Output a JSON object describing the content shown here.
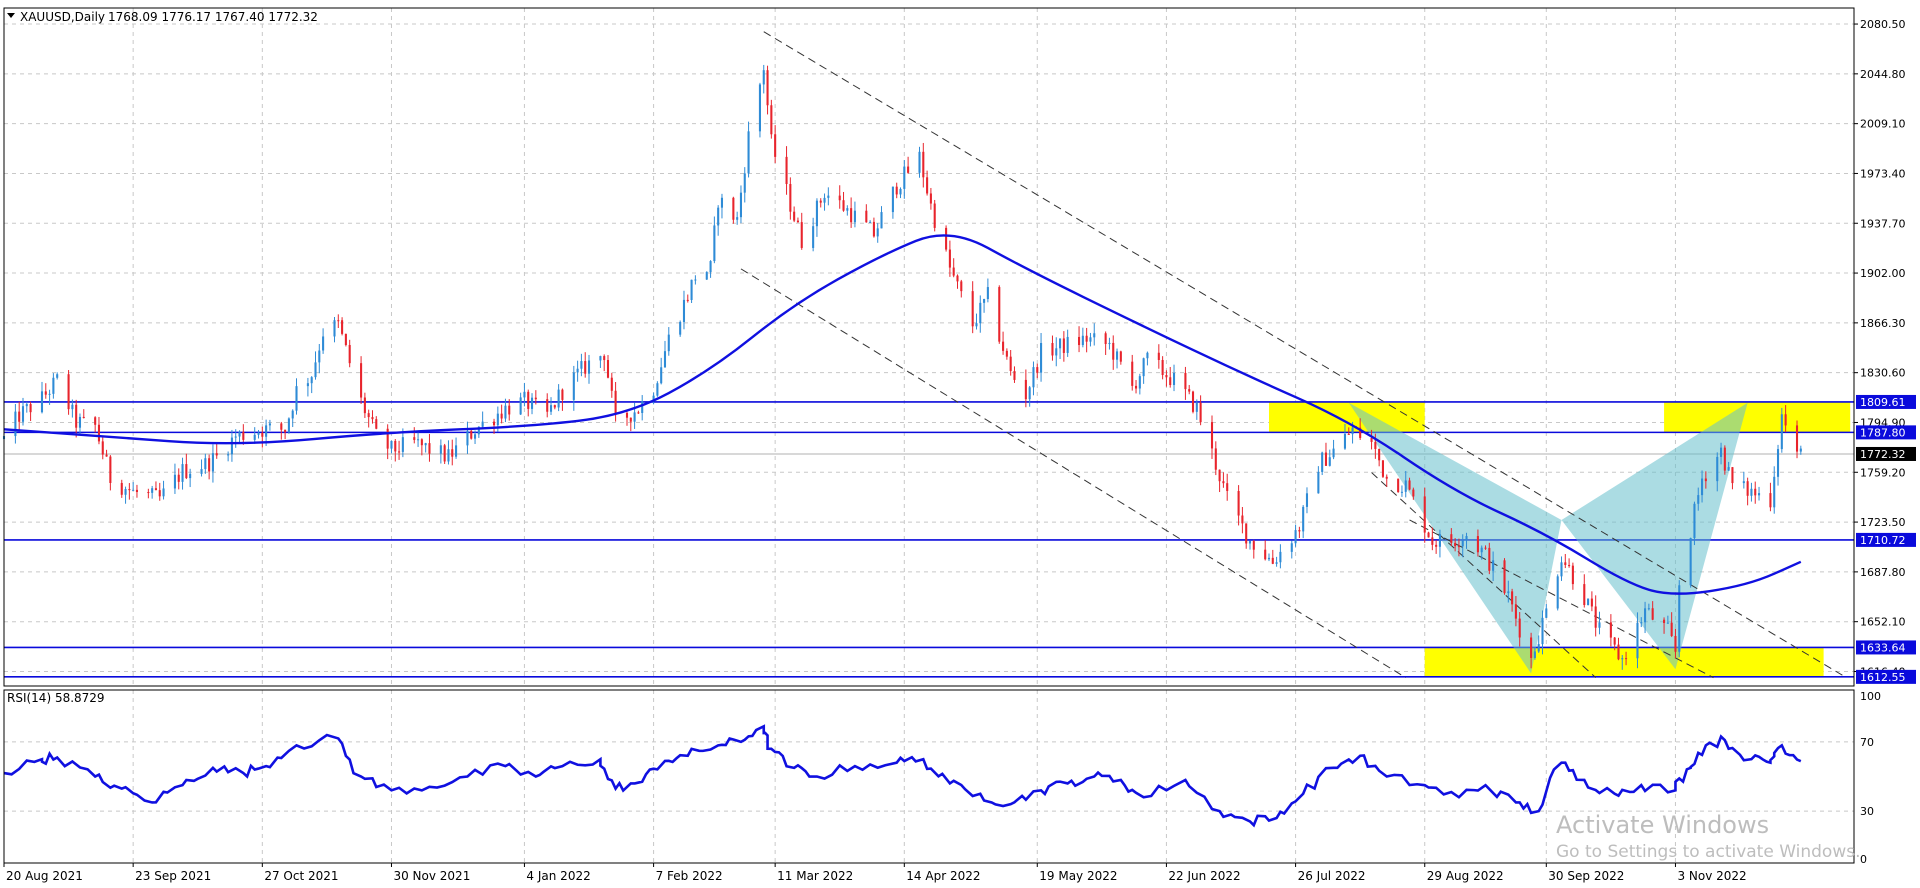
{
  "header": {
    "symbol_timeframe": "XAUUSD,Daily",
    "ohlc": "1768.09 1776.17 1767.40 1772.32"
  },
  "rsi_header": "RSI(14) 58.8729",
  "watermark": {
    "title": "Activate Windows",
    "subtitle": "Go to Settings to activate Windows."
  },
  "colors": {
    "bull": "#2E8BD6",
    "bear": "#E8242C",
    "ma_line": "#1010E0",
    "level_line": "#0A0ADC",
    "zone_yellow": "#FFFF00",
    "pattern_fill": "#66C0CC",
    "grid": "#C8C8C8"
  },
  "chart_data": [
    {
      "type": "candlestick",
      "symbol": "XAUUSD",
      "timeframe": "Daily",
      "title": "XAUUSD,Daily",
      "ohlc_last": {
        "open": 1768.09,
        "high": 1776.17,
        "low": 1767.4,
        "close": 1772.32
      },
      "last_price": 1772.32,
      "ylim": [
        1606,
        2092
      ],
      "y_ticks": [
        2080.5,
        2044.8,
        2009.1,
        1973.4,
        1937.7,
        1902.0,
        1866.3,
        1830.6,
        1794.9,
        1759.2,
        1723.5,
        1687.8,
        1652.1,
        1616.4
      ],
      "y_tick_labels": [
        "2080.50",
        "2044.80",
        "2009.10",
        "1973.40",
        "1937.70",
        "1902.00",
        "1866.30",
        "1830.60",
        "1794.90",
        "1759.20",
        "1723.50",
        "1687.80",
        "1652.10",
        "1616.40"
      ],
      "x_labels": [
        "20 Aug 2021",
        "23 Sep 2021",
        "27 Oct 2021",
        "30 Nov 2021",
        "4 Jan 2022",
        "7 Feb 2022",
        "11 Mar 2022",
        "14 Apr 2022",
        "19 May 2022",
        "22 Jun 2022",
        "26 Jul 2022",
        "29 Aug 2022",
        "30 Sep 2022",
        "3 Nov 2022"
      ],
      "grid": true,
      "close_anchors": [
        [
          "2021-08-20",
          1783
        ],
        [
          "2021-08-24",
          1800
        ],
        [
          "2021-08-30",
          1812
        ],
        [
          "2021-09-03",
          1825
        ],
        [
          "2021-09-08",
          1795
        ],
        [
          "2021-09-13",
          1792
        ],
        [
          "2021-09-17",
          1755
        ],
        [
          "2021-09-23",
          1745
        ],
        [
          "2021-09-30",
          1740
        ],
        [
          "2021-10-06",
          1760
        ],
        [
          "2021-10-12",
          1765
        ],
        [
          "2021-10-15",
          1770
        ],
        [
          "2021-10-20",
          1785
        ],
        [
          "2021-10-27",
          1790
        ],
        [
          "2021-11-02",
          1790
        ],
        [
          "2021-11-05",
          1818
        ],
        [
          "2021-11-09",
          1830
        ],
        [
          "2021-11-12",
          1860
        ],
        [
          "2021-11-16",
          1865
        ],
        [
          "2021-11-22",
          1810
        ],
        [
          "2021-11-26",
          1785
        ],
        [
          "2021-11-30",
          1775
        ],
        [
          "2021-12-06",
          1780
        ],
        [
          "2021-12-15",
          1770
        ],
        [
          "2021-12-22",
          1790
        ],
        [
          "2021-12-30",
          1805
        ],
        [
          "2022-01-04",
          1810
        ],
        [
          "2022-01-10",
          1800
        ],
        [
          "2022-01-14",
          1818
        ],
        [
          "2022-01-20",
          1835
        ],
        [
          "2022-01-25",
          1845
        ],
        [
          "2022-01-28",
          1795
        ],
        [
          "2022-02-03",
          1805
        ],
        [
          "2022-02-07",
          1820
        ],
        [
          "2022-02-11",
          1855
        ],
        [
          "2022-02-15",
          1880
        ],
        [
          "2022-02-18",
          1900
        ],
        [
          "2022-02-22",
          1905
        ],
        [
          "2022-02-24",
          1955
        ],
        [
          "2022-03-01",
          1940
        ],
        [
          "2022-03-04",
          2000
        ],
        [
          "2022-03-08",
          2050
        ],
        [
          "2022-03-10",
          1995
        ],
        [
          "2022-03-14",
          1960
        ],
        [
          "2022-03-18",
          1925
        ],
        [
          "2022-03-24",
          1960
        ],
        [
          "2022-03-31",
          1945
        ],
        [
          "2022-04-06",
          1930
        ],
        [
          "2022-04-12",
          1965
        ],
        [
          "2022-04-18",
          1985
        ],
        [
          "2022-04-21",
          1950
        ],
        [
          "2022-04-26",
          1905
        ],
        [
          "2022-05-02",
          1865
        ],
        [
          "2022-05-06",
          1885
        ],
        [
          "2022-05-12",
          1830
        ],
        [
          "2022-05-16",
          1815
        ],
        [
          "2022-05-20",
          1845
        ],
        [
          "2022-05-26",
          1850
        ],
        [
          "2022-06-01",
          1855
        ],
        [
          "2022-06-07",
          1850
        ],
        [
          "2022-06-13",
          1820
        ],
        [
          "2022-06-17",
          1840
        ],
        [
          "2022-06-24",
          1825
        ],
        [
          "2022-06-30",
          1805
        ],
        [
          "2022-07-05",
          1765
        ],
        [
          "2022-07-08",
          1740
        ],
        [
          "2022-07-14",
          1710
        ],
        [
          "2022-07-20",
          1695
        ],
        [
          "2022-07-27",
          1720
        ],
        [
          "2022-08-01",
          1765
        ],
        [
          "2022-08-05",
          1775
        ],
        [
          "2022-08-10",
          1790
        ],
        [
          "2022-08-15",
          1780
        ],
        [
          "2022-08-19",
          1755
        ],
        [
          "2022-08-24",
          1750
        ],
        [
          "2022-08-31",
          1710
        ],
        [
          "2022-09-05",
          1710
        ],
        [
          "2022-09-09",
          1715
        ],
        [
          "2022-09-14",
          1700
        ],
        [
          "2022-09-20",
          1670
        ],
        [
          "2022-09-26",
          1625
        ],
        [
          "2022-09-30",
          1660
        ],
        [
          "2022-10-04",
          1700
        ],
        [
          "2022-10-10",
          1670
        ],
        [
          "2022-10-14",
          1645
        ],
        [
          "2022-10-20",
          1625
        ],
        [
          "2022-10-26",
          1660
        ],
        [
          "2022-11-01",
          1645
        ],
        [
          "2022-11-03",
          1630
        ],
        [
          "2022-11-04",
          1680
        ],
        [
          "2022-11-10",
          1755
        ],
        [
          "2022-11-15",
          1775
        ],
        [
          "2022-11-18",
          1750
        ],
        [
          "2022-11-23",
          1745
        ],
        [
          "2022-11-28",
          1740
        ],
        [
          "2022-12-01",
          1800
        ],
        [
          "2022-12-05",
          1770
        ],
        [
          "2022-12-06",
          1772.32
        ]
      ],
      "moving_average_points": [
        [
          "2021-08-20",
          1790
        ],
        [
          "2021-09-15",
          1785
        ],
        [
          "2021-10-20",
          1778
        ],
        [
          "2021-11-30",
          1788
        ],
        [
          "2022-01-05",
          1792
        ],
        [
          "2022-01-31",
          1800
        ],
        [
          "2022-02-22",
          1832
        ],
        [
          "2022-03-16",
          1880
        ],
        [
          "2022-04-08",
          1915
        ],
        [
          "2022-04-26",
          1935
        ],
        [
          "2022-05-16",
          1905
        ],
        [
          "2022-06-15",
          1865
        ],
        [
          "2022-07-12",
          1830
        ],
        [
          "2022-08-10",
          1795
        ],
        [
          "2022-09-06",
          1745
        ],
        [
          "2022-09-30",
          1715
        ],
        [
          "2022-10-21",
          1680
        ],
        [
          "2022-11-02",
          1670
        ],
        [
          "2022-11-22",
          1678
        ],
        [
          "2022-12-06",
          1695
        ]
      ],
      "horizontal_levels": [
        1809.61,
        1787.8,
        1710.72,
        1633.64,
        1612.55
      ],
      "level_labels": [
        "1809.61",
        "1787.80",
        "1710.72",
        "1633.64",
        "1612.55"
      ],
      "highlight_zones": [
        {
          "from": "2022-07-19",
          "to": "2022-08-29",
          "low": 1787.8,
          "high": 1809.61
        },
        {
          "from": "2022-10-31",
          "to": "2022-12-19",
          "low": 1787.8,
          "high": 1809.61
        },
        {
          "from": "2022-08-29",
          "to": "2022-12-12",
          "low": 1612.55,
          "high": 1633.64
        }
      ],
      "pattern_points": [
        [
          "2022-08-09",
          1809
        ],
        [
          "2022-09-26",
          1615
        ],
        [
          "2022-10-04",
          1725
        ],
        [
          "2022-11-03",
          1618
        ],
        [
          "2022-11-22",
          1809
        ]
      ],
      "pattern_fill_triangles": [
        [
          [
            "2022-08-09",
            1809
          ],
          [
            "2022-09-26",
            1615
          ],
          [
            "2022-10-04",
            1725
          ]
        ],
        [
          [
            "2022-10-04",
            1725
          ],
          [
            "2022-11-03",
            1618
          ],
          [
            "2022-11-22",
            1809
          ]
        ]
      ],
      "trend_channel_lines": [
        [
          [
            "2022-03-08",
            2075
          ],
          [
            "2022-12-18",
            1612
          ]
        ],
        [
          [
            "2022-03-02",
            1905
          ],
          [
            "2022-08-24",
            1612
          ]
        ],
        [
          [
            "2022-08-15",
            1759
          ],
          [
            "2022-10-13",
            1612
          ]
        ],
        [
          [
            "2022-08-25",
            1725
          ],
          [
            "2022-11-13",
            1612
          ]
        ]
      ]
    },
    {
      "type": "line",
      "indicator": "RSI(14)",
      "title": "RSI(14) 58.8729",
      "last_value": 58.8729,
      "ylim": [
        0,
        100
      ],
      "y_ticks": [
        100,
        70,
        30,
        0
      ],
      "y_tick_labels": [
        "100",
        "70",
        "30",
        "0"
      ],
      "grid": true,
      "points": [
        [
          "2021-08-20",
          52
        ],
        [
          "2021-08-30",
          60
        ],
        [
          "2021-09-03",
          61
        ],
        [
          "2021-09-13",
          50
        ],
        [
          "2021-09-20",
          43
        ],
        [
          "2021-09-28",
          35
        ],
        [
          "2021-10-06",
          45
        ],
        [
          "2021-10-14",
          55
        ],
        [
          "2021-10-22",
          52
        ],
        [
          "2021-10-28",
          56
        ],
        [
          "2021-11-05",
          68
        ],
        [
          "2021-11-16",
          72
        ],
        [
          "2021-11-22",
          50
        ],
        [
          "2021-11-30",
          42
        ],
        [
          "2021-12-10",
          44
        ],
        [
          "2021-12-20",
          50
        ],
        [
          "2021-12-30",
          56
        ],
        [
          "2022-01-07",
          50
        ],
        [
          "2022-01-14",
          56
        ],
        [
          "2022-01-24",
          60
        ],
        [
          "2022-01-28",
          43
        ],
        [
          "2022-02-04",
          47
        ],
        [
          "2022-02-10",
          59
        ],
        [
          "2022-02-16",
          62
        ],
        [
          "2022-02-24",
          68
        ],
        [
          "2022-03-02",
          70
        ],
        [
          "2022-03-08",
          79
        ],
        [
          "2022-03-10",
          66
        ],
        [
          "2022-03-16",
          55
        ],
        [
          "2022-03-22",
          50
        ],
        [
          "2022-04-01",
          56
        ],
        [
          "2022-04-12",
          58
        ],
        [
          "2022-04-19",
          60
        ],
        [
          "2022-04-26",
          46
        ],
        [
          "2022-05-04",
          40
        ],
        [
          "2022-05-12",
          34
        ],
        [
          "2022-05-20",
          42
        ],
        [
          "2022-05-27",
          46
        ],
        [
          "2022-06-03",
          50
        ],
        [
          "2022-06-10",
          48
        ],
        [
          "2022-06-16",
          38
        ],
        [
          "2022-06-27",
          48
        ],
        [
          "2022-07-06",
          30
        ],
        [
          "2022-07-14",
          24
        ],
        [
          "2022-07-21",
          26
        ],
        [
          "2022-07-28",
          40
        ],
        [
          "2022-08-05",
          55
        ],
        [
          "2022-08-12",
          62
        ],
        [
          "2022-08-19",
          50
        ],
        [
          "2022-08-29",
          45
        ],
        [
          "2022-09-07",
          38
        ],
        [
          "2022-09-14",
          45
        ],
        [
          "2022-09-22",
          35
        ],
        [
          "2022-09-28",
          30
        ],
        [
          "2022-10-04",
          58
        ],
        [
          "2022-10-10",
          48
        ],
        [
          "2022-10-18",
          40
        ],
        [
          "2022-10-25",
          45
        ],
        [
          "2022-11-03",
          42
        ],
        [
          "2022-11-07",
          55
        ],
        [
          "2022-11-11",
          68
        ],
        [
          "2022-11-16",
          71
        ],
        [
          "2022-11-23",
          60
        ],
        [
          "2022-11-28",
          58
        ],
        [
          "2022-12-01",
          68
        ],
        [
          "2022-12-06",
          58.8729
        ]
      ]
    }
  ]
}
